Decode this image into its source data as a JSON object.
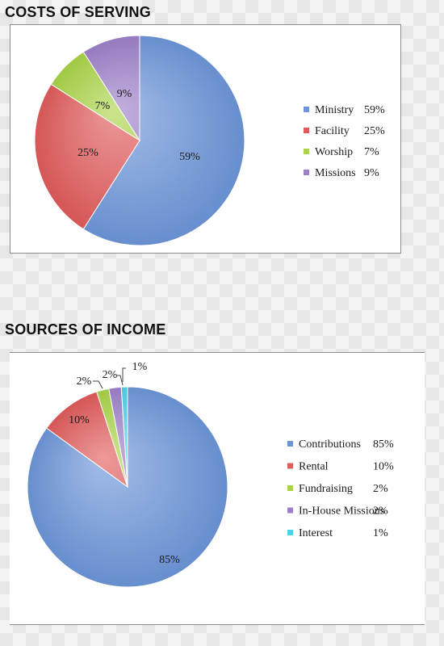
{
  "chart_data": [
    {
      "type": "pie",
      "title": "COSTS OF SERVING",
      "slices": [
        {
          "label": "Ministry",
          "value": 59,
          "display": "59%",
          "color": "#6c95d9"
        },
        {
          "label": "Facility",
          "value": 25,
          "display": "25%",
          "color": "#e05a5a"
        },
        {
          "label": "Worship",
          "value": 7,
          "display": "7%",
          "color": "#a9d447"
        },
        {
          "label": "Missions",
          "value": 9,
          "display": "9%",
          "color": "#9d80c9"
        }
      ],
      "legend": [
        {
          "label": "Ministry",
          "value": "59%"
        },
        {
          "label": "Facility",
          "value": "25%"
        },
        {
          "label": "Worship",
          "value": "7%"
        },
        {
          "label": "Missions",
          "value": "9%"
        }
      ],
      "legend_position": "right"
    },
    {
      "type": "pie",
      "title": "SOURCES OF INCOME",
      "slices": [
        {
          "label": "Contributions",
          "value": 85,
          "display": "85%",
          "color": "#6c95d9"
        },
        {
          "label": "Rental",
          "value": 10,
          "display": "10%",
          "color": "#e05a5a"
        },
        {
          "label": "Fundraising",
          "value": 2,
          "display": "2%",
          "color": "#a9d447"
        },
        {
          "label": "In-House Missions",
          "value": 2,
          "display": "2%",
          "color": "#9d80c9"
        },
        {
          "label": "Interest",
          "value": 1,
          "display": "1%",
          "color": "#4fd0e8"
        }
      ],
      "legend": [
        {
          "label": "Contributions",
          "value": "85%"
        },
        {
          "label": "Rental",
          "value": "10%"
        },
        {
          "label": "Fundraising",
          "value": "2%"
        },
        {
          "label": "In-House Missions",
          "value": "2%"
        },
        {
          "label": "Interest",
          "value": "1%"
        }
      ],
      "legend_position": "right"
    }
  ]
}
